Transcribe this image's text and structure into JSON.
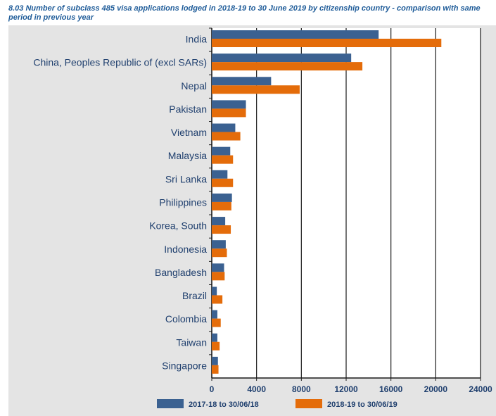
{
  "title": "8.03 Number of subclass 485 visa applications lodged in 2018-19 to 30 June 2019 by citizenship country - comparison with same period in previous year",
  "colors": {
    "series1": "#3b6191",
    "series2": "#e46c0a",
    "plot_bg": "#ffffff",
    "panel_bg": "#e4e4e4",
    "text": "#1f3f6e"
  },
  "chart_data": {
    "type": "bar",
    "orientation": "horizontal",
    "title": "8.03 Number of subclass 485 visa applications lodged in 2018-19 to 30 June 2019 by citizenship country - comparison with same period in previous year",
    "xlabel": "",
    "ylabel": "",
    "xlim": [
      0,
      24000
    ],
    "xticks": [
      "0",
      "4000",
      "8000",
      "12000",
      "16000",
      "20000",
      "24000"
    ],
    "grid": true,
    "legend_position": "bottom",
    "categories": [
      "India",
      "China, Peoples Republic of (excl SARs)",
      "Nepal",
      "Pakistan",
      "Vietnam",
      "Malaysia",
      "Sri Lanka",
      "Philippines",
      "Korea, South",
      "Indonesia",
      "Bangladesh",
      "Brazil",
      "Colombia",
      "Taiwan",
      "Singapore"
    ],
    "series": [
      {
        "name": "2017-18 to 30/06/18",
        "values": [
          14900,
          12450,
          5300,
          3050,
          2100,
          1650,
          1400,
          1800,
          1200,
          1250,
          1100,
          450,
          500,
          500,
          550
        ]
      },
      {
        "name": "2018-19 to 30/06/19",
        "values": [
          20500,
          13450,
          7850,
          3050,
          2550,
          1900,
          1900,
          1750,
          1700,
          1350,
          1150,
          950,
          800,
          700,
          600
        ]
      }
    ]
  }
}
